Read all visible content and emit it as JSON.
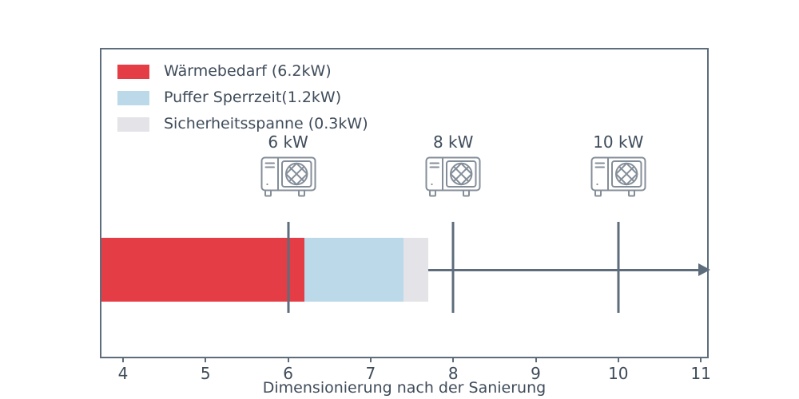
{
  "chart_data": {
    "type": "bar",
    "orientation": "horizontal",
    "title": "",
    "xlabel": "Dimensionierung nach der Sanierung",
    "ylabel": "",
    "xlim": [
      3.74,
      11.08
    ],
    "x_ticks": [
      4,
      5,
      6,
      7,
      8,
      9,
      10,
      11
    ],
    "grid": false,
    "legend_position": "upper left",
    "bar": {
      "starts_at_plot_left_edge": true,
      "segments": [
        {
          "name": "waermebedarf",
          "label": "Wärmebedarf (6.2kW)",
          "value_kw": 6.2,
          "end": 6.2,
          "color": "#e53d46"
        },
        {
          "name": "puffer-sperrzeit",
          "label": "Puffer Sperrzeit(1.2kW)",
          "value_kw": 1.2,
          "end": 7.4,
          "color": "#bcd9ea"
        },
        {
          "name": "sicherheitsspanne",
          "label": "Sicherheitsspanne (0.3kW)",
          "value_kw": 0.3,
          "end": 7.7,
          "color": "#e3e3e8"
        }
      ]
    },
    "markers": [
      {
        "x": 6,
        "label": "6 kW",
        "icon": "heat-pump-icon"
      },
      {
        "x": 8,
        "label": "8 kW",
        "icon": "heat-pump-icon"
      },
      {
        "x": 10,
        "label": "10 kW",
        "icon": "heat-pump-icon"
      }
    ],
    "colors": {
      "axis": "#5d6d7c",
      "text": "#3f4c5a",
      "icon": "#848e99",
      "background": "#ffffff"
    }
  }
}
